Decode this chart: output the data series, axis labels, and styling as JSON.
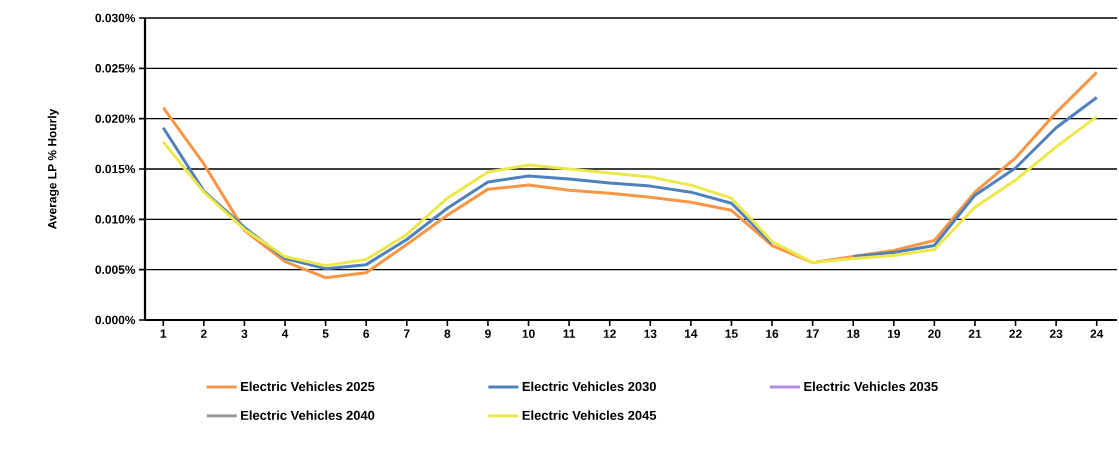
{
  "chart_data": {
    "type": "line",
    "ylabel": "Average LP % Hourly",
    "categories": [
      "1",
      "2",
      "3",
      "4",
      "5",
      "6",
      "7",
      "8",
      "9",
      "10",
      "11",
      "12",
      "13",
      "14",
      "15",
      "16",
      "17",
      "18",
      "19",
      "20",
      "21",
      "22",
      "23",
      "24"
    ],
    "series": [
      {
        "name": "Electric Vehicles 2025",
        "color": "#f79646",
        "values": [
          0.0211,
          0.0155,
          0.0089,
          0.0058,
          0.0042,
          0.0047,
          0.0075,
          0.0104,
          0.013,
          0.0134,
          0.0129,
          0.0126,
          0.0122,
          0.0117,
          0.0109,
          0.0074,
          0.0057,
          0.0063,
          0.0069,
          0.0079,
          0.0127,
          0.0161,
          0.0206,
          0.0246
        ]
      },
      {
        "name": "Electric Vehicles 2030",
        "color": "#4f81bd",
        "values": [
          0.0191,
          0.0128,
          0.0092,
          0.0061,
          0.0051,
          0.0055,
          0.008,
          0.0111,
          0.0137,
          0.0143,
          0.014,
          0.0136,
          0.0133,
          0.0127,
          0.0116,
          0.0076,
          null,
          0.0063,
          0.0067,
          0.0074,
          0.0124,
          0.0151,
          0.0191,
          0.0221
        ]
      },
      {
        "name": "Electric Vehicles 2035",
        "color": "#b48ae8",
        "values": [
          null,
          null,
          null,
          null,
          null,
          null,
          null,
          null,
          null,
          null,
          null,
          null,
          null,
          null,
          null,
          null,
          null,
          null,
          null,
          null,
          null,
          null,
          null,
          null
        ]
      },
      {
        "name": "Electric Vehicles 2040",
        "color": "#999999",
        "values": [
          null,
          null,
          null,
          null,
          null,
          null,
          null,
          null,
          null,
          null,
          null,
          null,
          null,
          null,
          null,
          null,
          null,
          null,
          null,
          null,
          null,
          null,
          null,
          null
        ]
      },
      {
        "name": "Electric Vehicles 2045",
        "color": "#ede84a",
        "values": [
          0.0177,
          0.0127,
          0.009,
          0.0063,
          0.0054,
          0.006,
          0.0085,
          0.0121,
          0.0147,
          0.0154,
          0.015,
          0.0146,
          0.0142,
          0.0134,
          0.0121,
          0.0078,
          0.0057,
          0.0061,
          0.0064,
          0.007,
          0.0112,
          0.0139,
          0.0172,
          0.0202
        ]
      }
    ],
    "ylim": [
      0,
      0.03
    ],
    "yticks": [
      {
        "value": 0,
        "label": "0.000%"
      },
      {
        "value": 0.005,
        "label": "0.005%"
      },
      {
        "value": 0.01,
        "label": "0.010%"
      },
      {
        "value": 0.015,
        "label": "0.015%"
      },
      {
        "value": 0.02,
        "label": "0.020%"
      },
      {
        "value": 0.025,
        "label": "0.025%"
      },
      {
        "value": 0.03,
        "label": "0.030%"
      }
    ],
    "grid": "y",
    "legend": "bottom",
    "marker": "none",
    "line_style": "solid"
  }
}
